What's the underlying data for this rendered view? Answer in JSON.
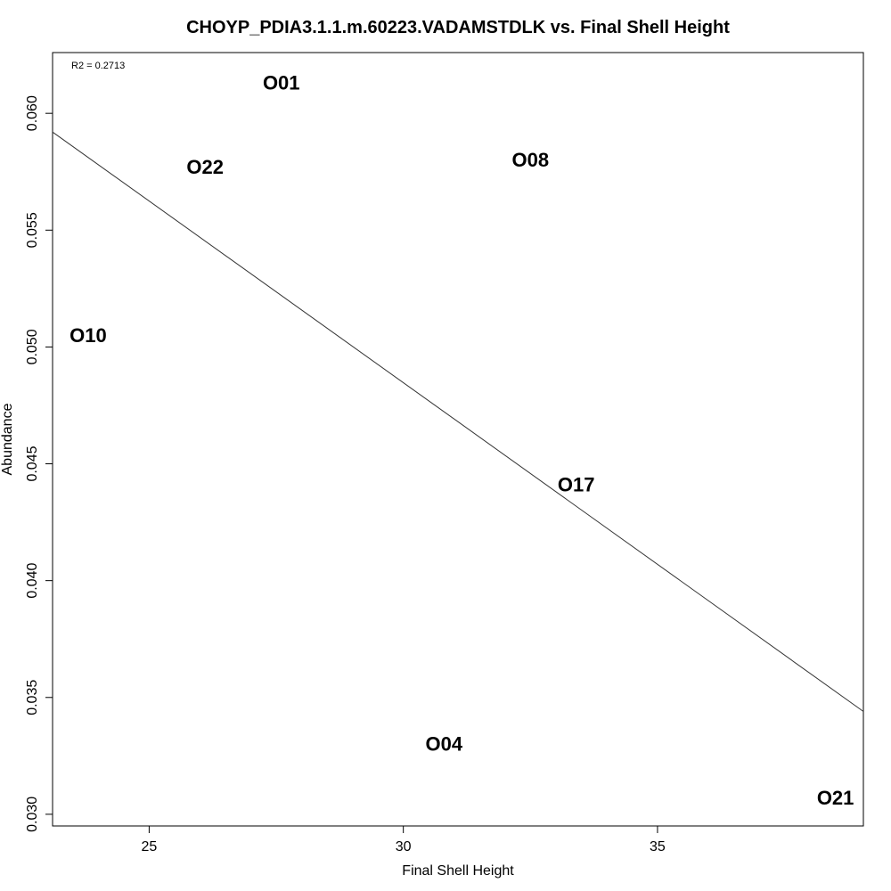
{
  "chart_data": {
    "type": "scatter",
    "title": "CHOYP_PDIA3.1.1.m.60223.VADAMSTDLK vs. Final Shell Height",
    "xlabel": "Final Shell Height",
    "ylabel": "Abundance",
    "annotation": "R2 = 0.2713",
    "xlim": [
      23.1,
      39.05
    ],
    "ylim": [
      0.0295,
      0.0626
    ],
    "xticks": [
      25,
      30,
      35
    ],
    "xtick_labels": [
      "25",
      "30",
      "35"
    ],
    "yticks": [
      0.03,
      0.035,
      0.04,
      0.045,
      0.05,
      0.055,
      0.06
    ],
    "ytick_labels": [
      "0.030",
      "0.035",
      "0.040",
      "0.045",
      "0.050",
      "0.055",
      "0.060"
    ],
    "grid": false,
    "points": [
      {
        "label": "O01",
        "x": 27.6,
        "y": 0.0613
      },
      {
        "label": "O22",
        "x": 26.1,
        "y": 0.0577
      },
      {
        "label": "O08",
        "x": 32.5,
        "y": 0.058
      },
      {
        "label": "O10",
        "x": 23.8,
        "y": 0.0505
      },
      {
        "label": "O17",
        "x": 33.4,
        "y": 0.0441
      },
      {
        "label": "O04",
        "x": 30.8,
        "y": 0.033
      },
      {
        "label": "O21",
        "x": 38.5,
        "y": 0.0307
      }
    ],
    "fit_line": {
      "x": [
        23.1,
        39.05
      ],
      "y": [
        0.0592,
        0.0344
      ]
    }
  }
}
